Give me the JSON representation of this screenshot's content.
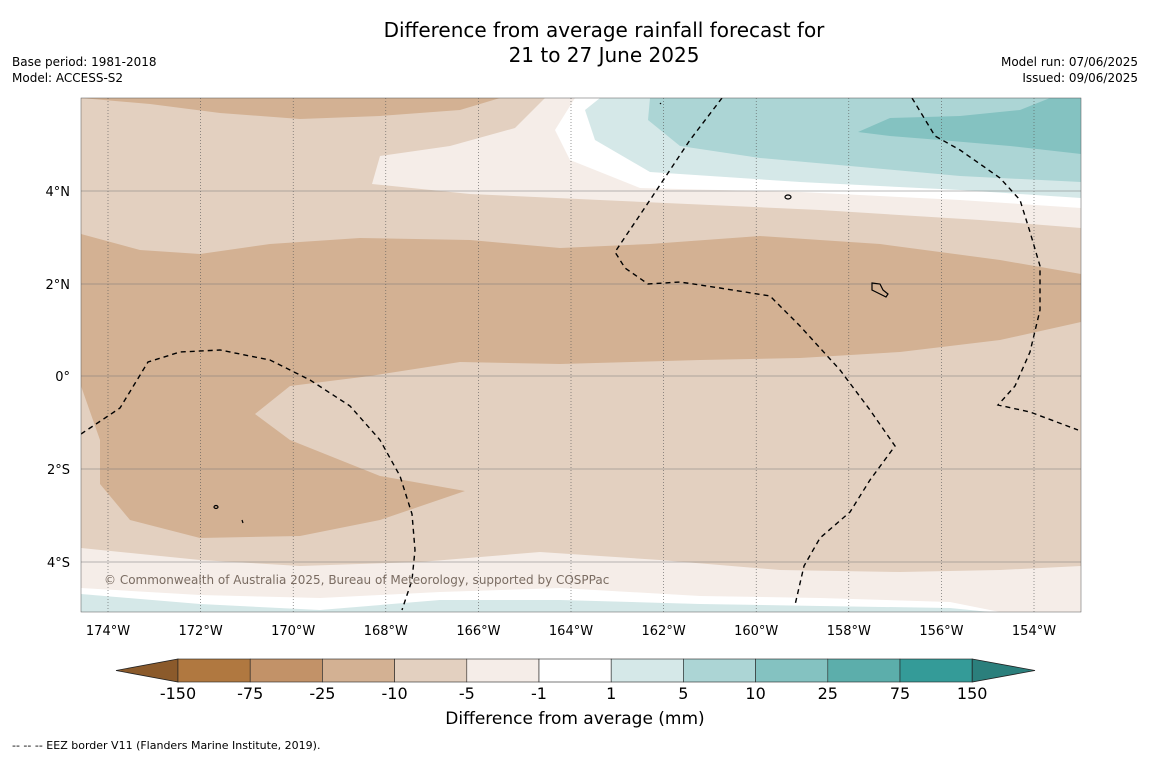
{
  "header": {
    "title_line1": "Difference from average rainfall forecast for",
    "title_line2": "21 to 27 June 2025",
    "base_period": "Base period: 1981-2018",
    "model": "Model: ACCESS-S2",
    "model_run": "Model run: 07/06/2025",
    "issued": "Issued: 09/06/2025"
  },
  "map": {
    "x_ticks": [
      "174°W",
      "172°W",
      "170°W",
      "168°W",
      "166°W",
      "164°W",
      "162°W",
      "160°W",
      "158°W",
      "156°W",
      "154°W"
    ],
    "y_ticks": [
      "4°N",
      "2°N",
      "0°",
      "2°S",
      "4°S"
    ],
    "copyright": "© Commonwealth of Australia 2025, Bureau of Meteorology, supported by COSPPac"
  },
  "colorbar": {
    "title": "Difference from average (mm)",
    "labels": [
      "-150",
      "-75",
      "-25",
      "-10",
      "-5",
      "-1",
      "1",
      "5",
      "10",
      "25",
      "75",
      "150"
    ],
    "colors": [
      "#b07840",
      "#c29268",
      "#d3b193",
      "#e3d0c0",
      "#f5ede8",
      "#ffffff",
      "#d5e8e8",
      "#acd5d5",
      "#84c2c1",
      "#5caeab",
      "#349b98"
    ],
    "extend_low": "#8b5a2b",
    "extend_high": "#2b7f7c"
  },
  "footer": {
    "eez_note": "--  --  -- EEZ border V11 (Flanders Marine Institute, 2019)."
  }
}
